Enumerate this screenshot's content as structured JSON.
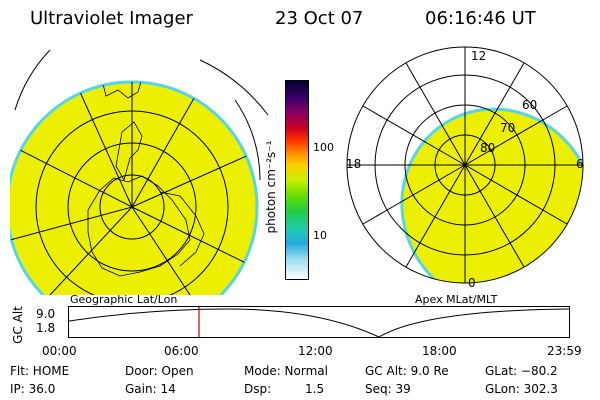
{
  "header": {
    "instrument": "Ultraviolet Imager",
    "date": "23 Oct 07",
    "time": "06:16:46 UT"
  },
  "left_panel": {
    "caption": "Geographic Lat/Lon"
  },
  "right_panel": {
    "caption": "Apex MLat/MLT",
    "mlt_labels": {
      "top": "12",
      "left": "18",
      "right": "6",
      "bottom": "0"
    },
    "lat_labels": [
      "80",
      "70",
      "60"
    ]
  },
  "colorbar": {
    "label": "photon cm⁻²s⁻¹",
    "ticks": [
      "100",
      "10"
    ],
    "colors": [
      "#000033",
      "#330066",
      "#880066",
      "#cc0022",
      "#ff3300",
      "#ff8800",
      "#ffcc00",
      "#ccee00",
      "#66dd00",
      "#22cc44",
      "#22ccaa",
      "#22aadd",
      "#99ddee",
      "#ffffff"
    ]
  },
  "altitude_plot": {
    "ylabel": "GC Alt",
    "y_ticks": [
      "9.0",
      "1.8"
    ],
    "x_ticks": [
      "00:00",
      "06:00",
      "12:00",
      "18:00",
      "23:59"
    ],
    "current_time_fraction": 0.26,
    "marker_color": "#cc0000"
  },
  "status": {
    "row1": {
      "flt": "Flt: HOME",
      "door": "Door: Open",
      "mode": "Mode: Normal",
      "gc_alt": "GC Alt: 9.0 Re",
      "glat": "GLat: −80.2"
    },
    "row2": {
      "ip": "IP: 36.0",
      "gain": "Gain: 14",
      "dsp_label": "Dsp:",
      "dsp_value": "1.5",
      "seq": "Seq: 39",
      "glon": "GLon: 302.3"
    }
  },
  "fill_colors": {
    "aurora": "#ecf000",
    "edge": "#55d6e8"
  }
}
